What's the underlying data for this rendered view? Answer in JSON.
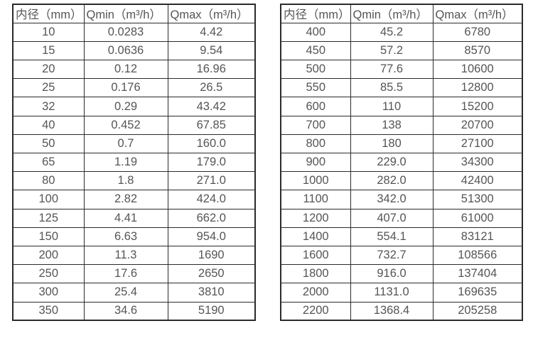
{
  "page": {
    "background_color": "#ffffff",
    "border_color": "#2b2b2b",
    "text_color": "#555555"
  },
  "chart_data": [
    {
      "type": "table",
      "name": "flow-rate-spec-small-diameters",
      "headers": [
        "内径（mm）",
        "Qmin（m³/h）",
        "Qmax（m³/h）"
      ],
      "rows": [
        [
          "10",
          "0.0283",
          "4.42"
        ],
        [
          "15",
          "0.0636",
          "9.54"
        ],
        [
          "20",
          "0.12",
          "16.96"
        ],
        [
          "25",
          "0.176",
          "26.5"
        ],
        [
          "32",
          "0.29",
          "43.42"
        ],
        [
          "40",
          "0.452",
          "67.85"
        ],
        [
          "50",
          "0.7",
          "160.0"
        ],
        [
          "65",
          "1.19",
          "179.0"
        ],
        [
          "80",
          "1.8",
          "271.0"
        ],
        [
          "100",
          "2.82",
          "424.0"
        ],
        [
          "125",
          "4.41",
          "662.0"
        ],
        [
          "150",
          "6.63",
          "954.0"
        ],
        [
          "200",
          "11.3",
          "1690"
        ],
        [
          "250",
          "17.6",
          "2650"
        ],
        [
          "300",
          "25.4",
          "3810"
        ],
        [
          "350",
          "34.6",
          "5190"
        ]
      ]
    },
    {
      "type": "table",
      "name": "flow-rate-spec-large-diameters",
      "headers": [
        "内径（mm）",
        "Qmin（m³/h）",
        "Qmax（m³/h）"
      ],
      "rows": [
        [
          "400",
          "45.2",
          "6780"
        ],
        [
          "450",
          "57.2",
          "8570"
        ],
        [
          "500",
          "77.6",
          "10600"
        ],
        [
          "550",
          "85.5",
          "12800"
        ],
        [
          "600",
          "110",
          "15200"
        ],
        [
          "700",
          "138",
          "20700"
        ],
        [
          "800",
          "180",
          "27100"
        ],
        [
          "900",
          "229.0",
          "34300"
        ],
        [
          "1000",
          "282.0",
          "42400"
        ],
        [
          "1100",
          "342.0",
          "51300"
        ],
        [
          "1200",
          "407.0",
          "61000"
        ],
        [
          "1400",
          "554.1",
          "83121"
        ],
        [
          "1600",
          "732.7",
          "108566"
        ],
        [
          "1800",
          "916.0",
          "137404"
        ],
        [
          "2000",
          "1131.0",
          "169635"
        ],
        [
          "2200",
          "1368.4",
          "205258"
        ]
      ]
    }
  ]
}
